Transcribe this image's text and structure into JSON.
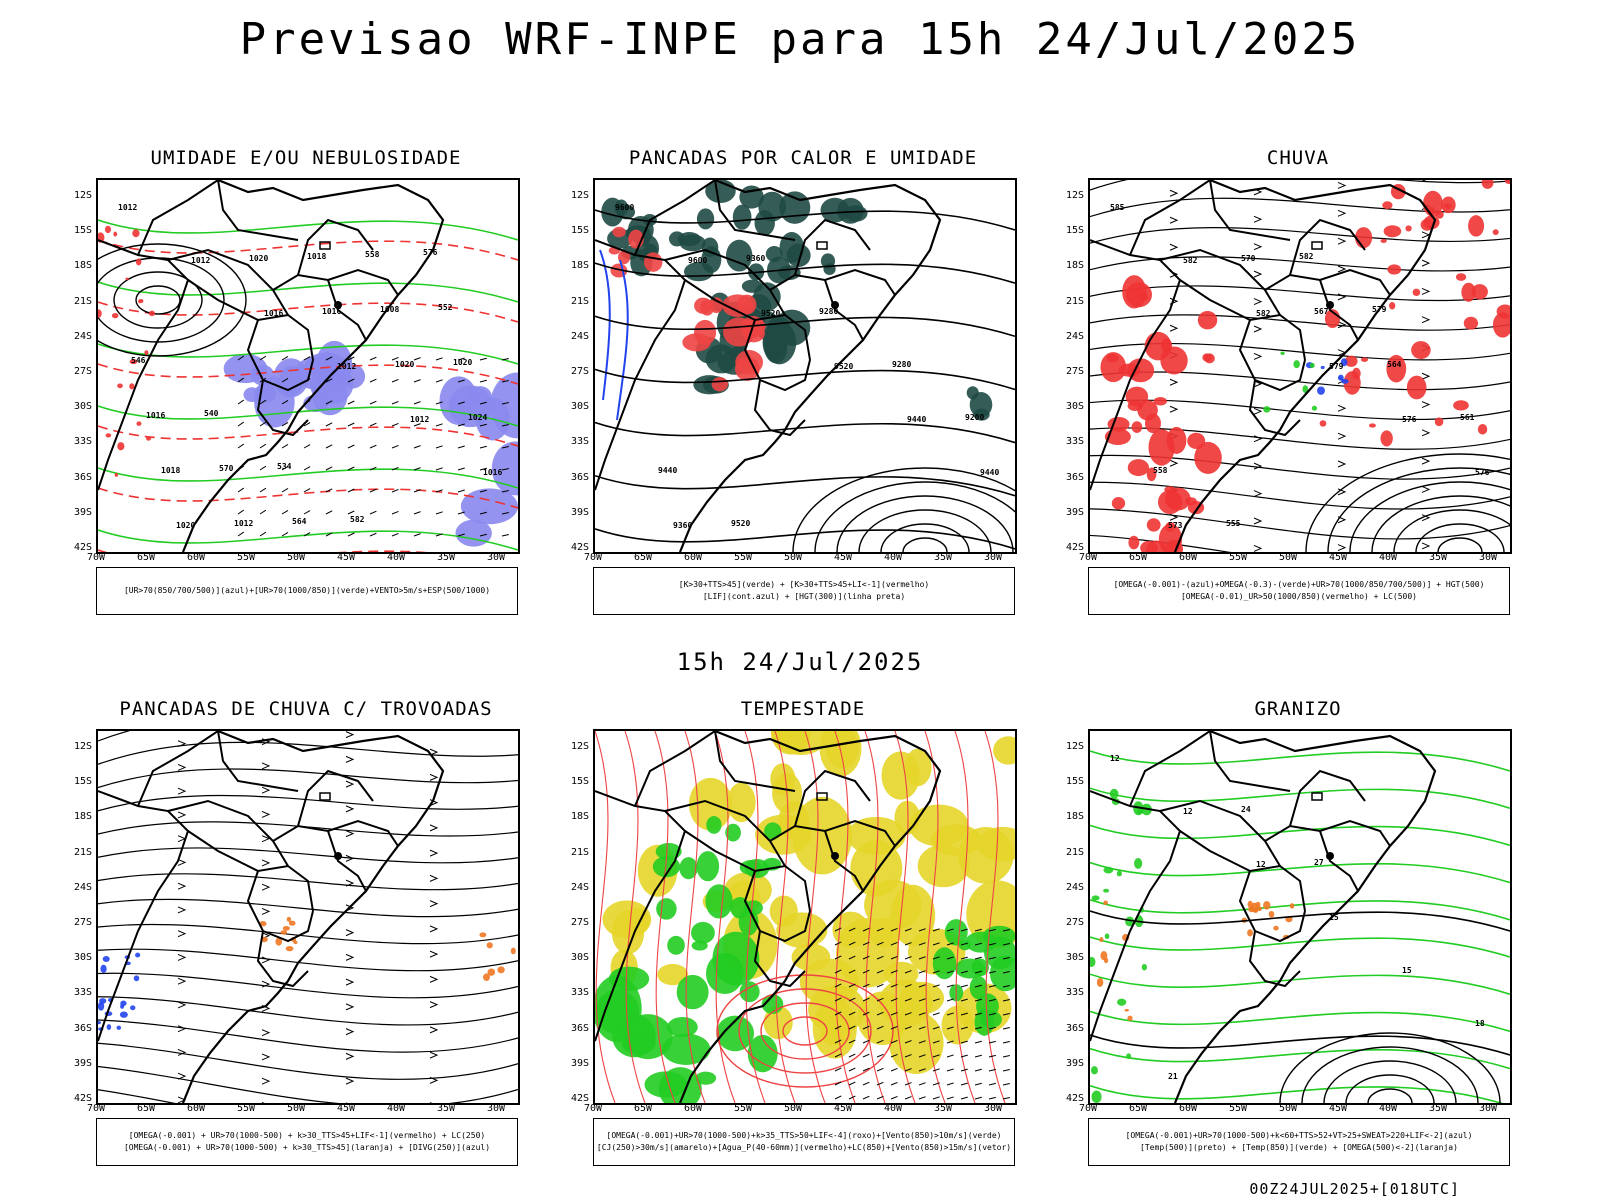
{
  "main_title": "Previsao WRF-INPE  para 15h 24/Jul/2025",
  "mid_title": "15h 24/Jul/2025",
  "footer_stamp": "00Z24JUL2025+[018UTC]",
  "lat_labels": [
    "12S",
    "15S",
    "18S",
    "21S",
    "24S",
    "27S",
    "30S",
    "33S",
    "36S",
    "39S",
    "42S"
  ],
  "lon_labels": [
    "70W",
    "65W",
    "60W",
    "55W",
    "50W",
    "45W",
    "40W",
    "35W",
    "30W"
  ],
  "panels": [
    {
      "title": "UMIDADE E/OU NEBULOSIDADE",
      "caption": [
        "[UR>70(850/700/500)](azul)+[UR>70(1000/850)](verde)+VENTO>5m/s+ESP(500/1000)"
      ],
      "contour_labels": [
        "1012",
        "1012",
        "1016",
        "1012",
        "1012",
        "1016",
        "1020",
        "1020",
        "1016",
        "1020",
        "1024",
        "1018",
        "1012",
        "1018",
        "1008",
        "1020",
        "1016",
        "570",
        "564",
        "558",
        "552",
        "546",
        "540",
        "534",
        "582",
        "576"
      ],
      "colors": {
        "blue": "#8888ee",
        "green": "#22cc22",
        "red": "#e33",
        "black": "#000"
      }
    },
    {
      "title": "PANCADAS POR CALOR E UMIDADE",
      "caption": [
        "[K>30+TTS>45](verde) + [K>30+TTS>45+LI<-1](vermelho)",
        "[LIF](cont.azul) + [HGT(300)](linha preta)"
      ],
      "contour_labels": [
        "9600",
        "9600",
        "9520",
        "9520",
        "9440",
        "9440",
        "9360",
        "9360",
        "9280",
        "9280",
        "9200",
        "9440",
        "9520"
      ],
      "colors": {
        "dark_green": "#1f4a44",
        "red": "#ee4444",
        "blue": "#2244ee"
      }
    },
    {
      "title": "CHUVA",
      "caption": [
        "[OMEGA(-0.001)-(azul)+OMEGA(-0.3)-(verde)+UR>70(1000/850/700/500)] + HGT(500)",
        "[OMEGA(-0.01)_UR>50(1000/850)(vermelho) + LC(500)"
      ],
      "contour_labels": [
        "585",
        "582",
        "582",
        "579",
        "576",
        "576",
        "573",
        "570",
        "567",
        "564",
        "561",
        "558",
        "555",
        "582",
        "579"
      ],
      "colors": {
        "red": "#ee3333",
        "blue": "#2244ee",
        "green": "#22cc22"
      }
    },
    {
      "title": "PANCADAS DE CHUVA C/ TROVOADAS",
      "caption": [
        "[OMEGA(-0.001) + UR>70(1000-500) + k>30_TTS>45+LIF<-1](vermelho) + LC(250)",
        "[OMEGA(-0.001) + UR>70(1000-500) + k>30_TTS>45](laranja) + [DIVG(250)](azul)"
      ],
      "contour_labels": [],
      "colors": {
        "orange": "#ee7722",
        "blue": "#2244ee"
      }
    },
    {
      "title": "TEMPESTADE",
      "caption": [
        "[OMEGA(-0.001)+UR>70(1000-500)+k>35_TTS>50+LIF<-4](roxo)+[Vento(850)>10m/s](verde)",
        "[CJ(250)>30m/s](amarelo)+[Agua_P(40-60mm)](vermelho)+LC(850)+[Vento(850)>15m/s](vetor)"
      ],
      "contour_labels": [],
      "colors": {
        "yellow": "#e6d52a",
        "green": "#22cc22",
        "red": "#ee4444"
      }
    },
    {
      "title": "GRANIZO",
      "caption": [
        "[OMEGA(-0.001)+UR>70(1000-500)+k<60+TTS>52+VT>25+SWEAT>220+LIF<-2](azul)",
        "[Temp(500)](preto) + [Temp(850)](verde) + [OMEGA(500)<-2](laranja)"
      ],
      "contour_labels": [
        "12",
        "12",
        "12",
        "15",
        "15",
        "18",
        "21",
        "24",
        "27"
      ],
      "colors": {
        "green": "#22cc22",
        "orange": "#ee7722",
        "black": "#000"
      }
    }
  ]
}
